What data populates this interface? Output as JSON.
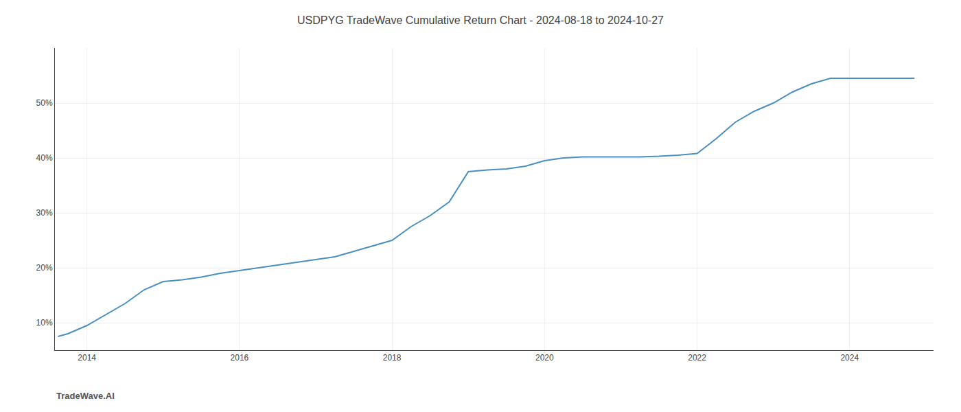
{
  "chart_data": {
    "type": "line",
    "title": "USDPYG TradeWave Cumulative Return Chart - 2024-08-18 to 2024-10-27",
    "annotations": [
      {
        "text": "TradeWave.AI"
      }
    ],
    "x": [
      2013.62,
      2013.75,
      2014.0,
      2014.25,
      2014.5,
      2014.75,
      2015.0,
      2015.25,
      2015.5,
      2015.75,
      2016.0,
      2016.25,
      2016.5,
      2016.75,
      2017.0,
      2017.25,
      2017.5,
      2017.75,
      2018.0,
      2018.25,
      2018.5,
      2018.75,
      2019.0,
      2019.25,
      2019.5,
      2019.75,
      2020.0,
      2020.25,
      2020.5,
      2020.75,
      2021.0,
      2021.25,
      2021.5,
      2021.75,
      2022.0,
      2022.25,
      2022.5,
      2022.75,
      2023.0,
      2023.25,
      2023.5,
      2023.75,
      2024.0,
      2024.25,
      2024.5,
      2024.75,
      2024.85
    ],
    "values": [
      7.5,
      8.0,
      9.5,
      11.5,
      13.5,
      16.0,
      17.5,
      17.8,
      18.3,
      19.0,
      19.5,
      20.0,
      20.5,
      21.0,
      21.5,
      22.0,
      23.0,
      24.0,
      25.0,
      27.5,
      29.5,
      32.0,
      37.5,
      37.8,
      38.0,
      38.5,
      39.5,
      40.0,
      40.2,
      40.2,
      40.2,
      40.2,
      40.3,
      40.5,
      40.8,
      43.5,
      46.5,
      48.5,
      50.0,
      52.0,
      53.5,
      54.5,
      54.5,
      54.5,
      54.5,
      54.5,
      54.5
    ],
    "color": "#4a8fc0",
    "xlim": [
      2013.58,
      2025.1
    ],
    "ylim": [
      5,
      60
    ],
    "xticks": [
      2014,
      2016,
      2018,
      2020,
      2022,
      2024
    ],
    "yticks": [
      {
        "value": 10,
        "label": "10%"
      },
      {
        "value": 20,
        "label": "20%"
      },
      {
        "value": 30,
        "label": "30%"
      },
      {
        "value": 40,
        "label": "40%"
      },
      {
        "value": 50,
        "label": "50%"
      }
    ],
    "grid": true
  }
}
